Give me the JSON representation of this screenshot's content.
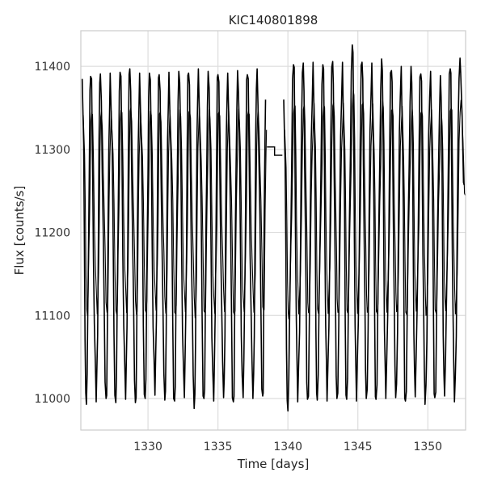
{
  "chart_data": {
    "type": "line",
    "title": "KIC140801898",
    "xlabel": "Time [days]",
    "ylabel": "Flux [counts/s]",
    "xlim": [
      1325.2,
      1352.7
    ],
    "ylim": [
      10962,
      11443
    ],
    "xticks": [
      1330,
      1335,
      1340,
      1345,
      1350
    ],
    "yticks": [
      11000,
      11100,
      11200,
      11300,
      11400
    ],
    "grid": true,
    "line_color": "#000000",
    "grid_color": "#dddddd",
    "gap": {
      "start": 1338.5,
      "end": 1339.6,
      "levels": [
        11303,
        11293
      ]
    },
    "period_days": 0.72,
    "series": [
      {
        "segment": "before-gap",
        "x": [
          1325.3,
          1325.6,
          1325.9,
          1326.3,
          1326.6,
          1327.0,
          1327.3,
          1327.7,
          1328.0,
          1328.4,
          1328.7,
          1329.1,
          1329.4,
          1329.8,
          1330.1,
          1330.5,
          1330.8,
          1331.2,
          1331.5,
          1331.9,
          1332.2,
          1332.6,
          1332.9,
          1333.3,
          1333.6,
          1334.0,
          1334.3,
          1334.7,
          1335.0,
          1335.4,
          1335.7,
          1336.1,
          1336.4,
          1336.8,
          1337.1,
          1337.5,
          1337.8,
          1338.2,
          1338.4
        ],
        "y": [
          11385,
          10993,
          11388,
          10996,
          11391,
          11000,
          11392,
          10995,
          11393,
          10999,
          11397,
          10995,
          11392,
          11000,
          11392,
          11004,
          11390,
          10998,
          11393,
          10997,
          11394,
          11001,
          11392,
          10988,
          11397,
          11000,
          11394,
          10997,
          11390,
          11001,
          11392,
          10996,
          11395,
          11001,
          11390,
          11000,
          11397,
          11003,
          11360
        ]
      },
      {
        "segment": "after-gap",
        "x": [
          1339.7,
          1340.0,
          1340.4,
          1340.7,
          1341.1,
          1341.4,
          1341.8,
          1342.1,
          1342.5,
          1342.8,
          1343.2,
          1343.5,
          1343.9,
          1344.2,
          1344.6,
          1344.9,
          1345.3,
          1345.6,
          1346.0,
          1346.3,
          1346.7,
          1347.0,
          1347.4,
          1347.7,
          1348.1,
          1348.4,
          1348.8,
          1349.1,
          1349.5,
          1349.8,
          1350.2,
          1350.5,
          1350.9,
          1351.2,
          1351.6,
          1351.9,
          1352.3,
          1352.6
        ],
        "y": [
          11360,
          10985,
          11402,
          10996,
          11404,
          10999,
          11405,
          10998,
          11402,
          10997,
          11406,
          11000,
          11405,
          10999,
          11426,
          10997,
          11405,
          11000,
          11404,
          10999,
          11409,
          11000,
          11395,
          11001,
          11400,
          10997,
          11400,
          11002,
          11391,
          10993,
          11394,
          11001,
          11389,
          11003,
          11397,
          10996,
          11410,
          11257
        ]
      }
    ]
  }
}
